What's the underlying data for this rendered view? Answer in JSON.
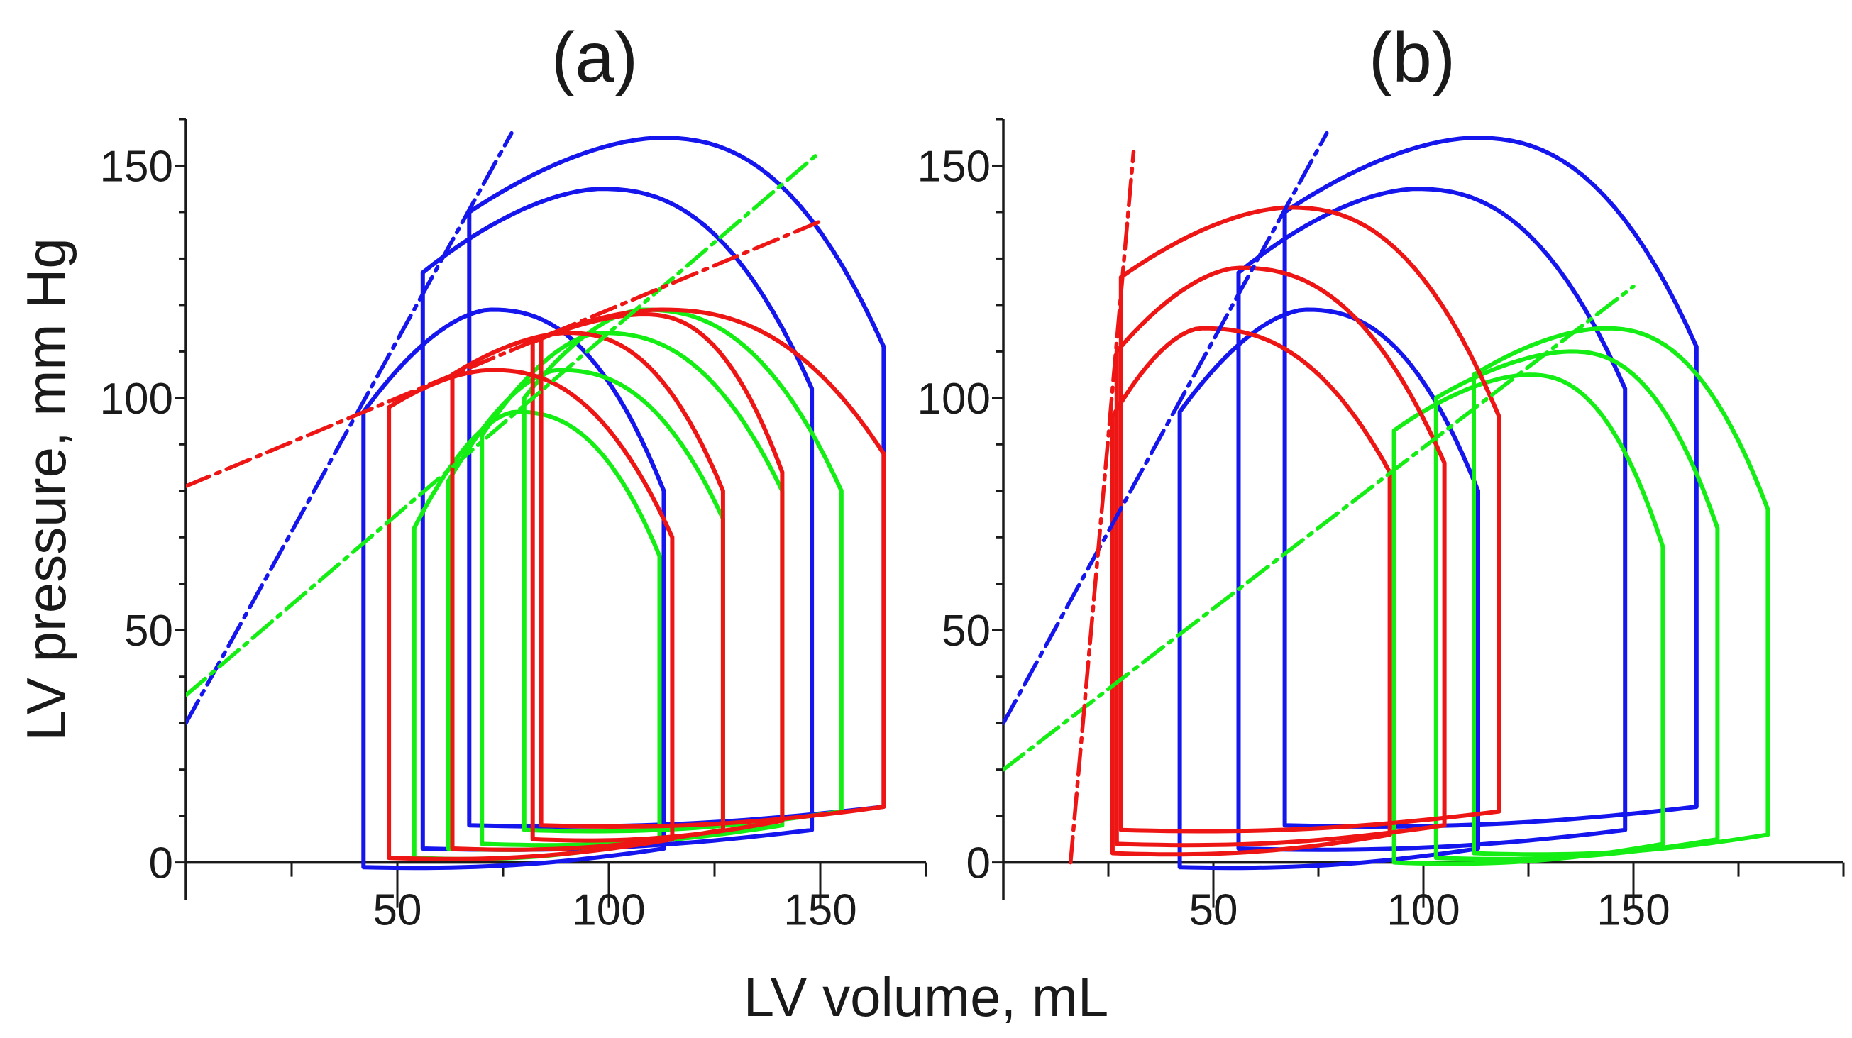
{
  "colors": {
    "blue": "#1515ee",
    "green": "#15ee15",
    "red": "#ee1515"
  },
  "chart_data": {
    "type": "line",
    "xlabel": "LV volume, mL",
    "ylabel": "LV pressure, mm Hg",
    "panels": [
      {
        "title": "(a)",
        "xlim": [
          0,
          175
        ],
        "ylim": [
          -8,
          160
        ],
        "xticks": [
          50,
          100,
          150
        ],
        "yticks": [
          0,
          50,
          100,
          150
        ],
        "loops": [
          {
            "color": "blue",
            "edv": 113,
            "esv": 42,
            "ped": 3,
            "p_ivc_end": 97,
            "p_peak": 119,
            "v_peak": 72,
            "p_es": 80
          },
          {
            "color": "blue",
            "edv": 148,
            "esv": 56,
            "ped": 7,
            "p_ivc_end": 127,
            "p_peak": 145,
            "v_peak": 98,
            "p_es": 102
          },
          {
            "color": "blue",
            "edv": 165,
            "esv": 67,
            "ped": 12,
            "p_ivc_end": 140,
            "p_peak": 156,
            "v_peak": 112,
            "p_es": 111
          },
          {
            "color": "green",
            "edv": 112,
            "esv": 54,
            "ped": 5,
            "p_ivc_end": 72,
            "p_peak": 97,
            "v_peak": 78,
            "p_es": 66
          },
          {
            "color": "green",
            "edv": 127,
            "esv": 62,
            "ped": 7,
            "p_ivc_end": 82,
            "p_peak": 106,
            "v_peak": 88,
            "p_es": 74
          },
          {
            "color": "green",
            "edv": 141,
            "esv": 70,
            "ped": 8,
            "p_ivc_end": 92,
            "p_peak": 114,
            "v_peak": 98,
            "p_es": 80
          },
          {
            "color": "green",
            "edv": 155,
            "esv": 80,
            "ped": 11,
            "p_ivc_end": 100,
            "p_peak": 119,
            "v_peak": 108,
            "p_es": 80
          },
          {
            "color": "red",
            "edv": 115,
            "esv": 48,
            "ped": 5,
            "p_ivc_end": 98,
            "p_peak": 106,
            "v_peak": 72,
            "p_es": 70
          },
          {
            "color": "red",
            "edv": 127,
            "esv": 63,
            "ped": 7,
            "p_ivc_end": 105,
            "p_peak": 114,
            "v_peak": 90,
            "p_es": 80
          },
          {
            "color": "red",
            "edv": 141,
            "esv": 82,
            "ped": 9,
            "p_ivc_end": 112,
            "p_peak": 118,
            "v_peak": 108,
            "p_es": 84
          },
          {
            "color": "red",
            "edv": 165,
            "esv": 84,
            "ped": 12,
            "p_ivc_end": 113,
            "p_peak": 119,
            "v_peak": 112,
            "p_es": 88
          }
        ],
        "espvr": [
          {
            "color": "blue",
            "x": [
              0,
              77
            ],
            "y": [
              30,
              157
            ]
          },
          {
            "color": "green",
            "x": [
              0,
              150
            ],
            "y": [
              36,
              153
            ]
          },
          {
            "color": "red",
            "x": [
              0,
              150
            ],
            "y": [
              81,
              138
            ]
          }
        ]
      },
      {
        "title": "(b)",
        "xlim": [
          0,
          200
        ],
        "ylim": [
          -8,
          160
        ],
        "xticks": [
          50,
          100,
          150
        ],
        "yticks": [
          0,
          50,
          100,
          150
        ],
        "loops": [
          {
            "color": "blue",
            "edv": 113,
            "esv": 42,
            "ped": 3,
            "p_ivc_end": 97,
            "p_peak": 119,
            "v_peak": 72,
            "p_es": 80
          },
          {
            "color": "blue",
            "edv": 148,
            "esv": 56,
            "ped": 7,
            "p_ivc_end": 127,
            "p_peak": 145,
            "v_peak": 98,
            "p_es": 102
          },
          {
            "color": "blue",
            "edv": 165,
            "esv": 67,
            "ped": 12,
            "p_ivc_end": 140,
            "p_peak": 156,
            "v_peak": 112,
            "p_es": 111
          },
          {
            "color": "green",
            "edv": 157,
            "esv": 93,
            "ped": 4,
            "p_ivc_end": 93,
            "p_peak": 105,
            "v_peak": 125,
            "p_es": 68
          },
          {
            "color": "green",
            "edv": 170,
            "esv": 103,
            "ped": 5,
            "p_ivc_end": 100,
            "p_peak": 110,
            "v_peak": 135,
            "p_es": 72
          },
          {
            "color": "green",
            "edv": 182,
            "esv": 112,
            "ped": 6,
            "p_ivc_end": 105,
            "p_peak": 115,
            "v_peak": 143,
            "p_es": 76
          },
          {
            "color": "red",
            "edv": 92,
            "esv": 26,
            "ped": 6,
            "p_ivc_end": 96,
            "p_peak": 115,
            "v_peak": 47,
            "p_es": 84
          },
          {
            "color": "red",
            "edv": 105,
            "esv": 27,
            "ped": 8,
            "p_ivc_end": 110,
            "p_peak": 128,
            "v_peak": 56,
            "p_es": 86
          },
          {
            "color": "red",
            "edv": 118,
            "esv": 28,
            "ped": 11,
            "p_ivc_end": 126,
            "p_peak": 141,
            "v_peak": 68,
            "p_es": 96
          }
        ],
        "espvr": [
          {
            "color": "blue",
            "x": [
              0,
              77
            ],
            "y": [
              30,
              157
            ]
          },
          {
            "color": "green",
            "x": [
              0,
              150
            ],
            "y": [
              20,
              124
            ]
          },
          {
            "color": "red",
            "x": [
              16,
              31
            ],
            "y": [
              0,
              153
            ]
          }
        ]
      }
    ]
  }
}
